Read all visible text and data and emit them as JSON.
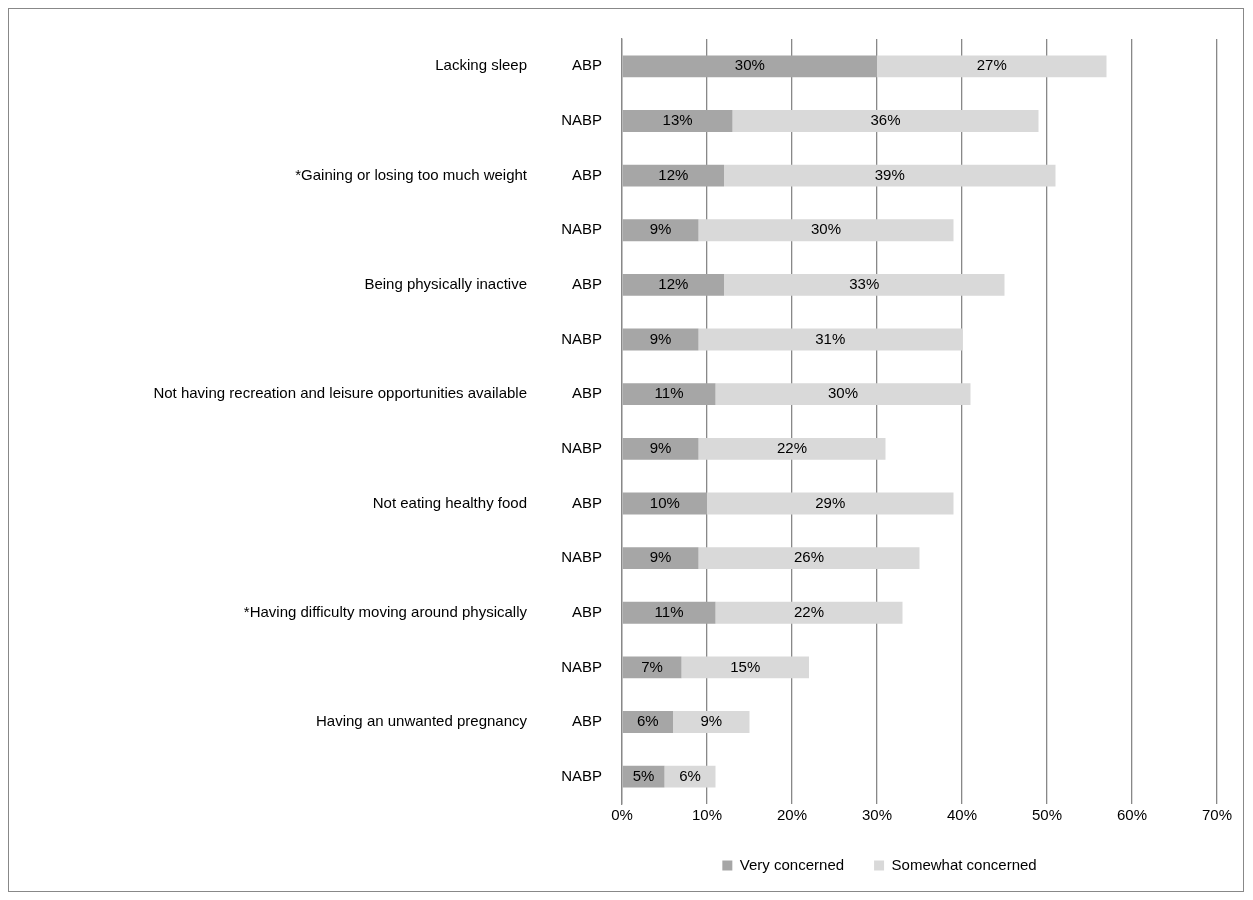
{
  "chart_data": {
    "type": "bar",
    "orientation": "horizontal",
    "stacked": true,
    "categories": [
      "ABP",
      "NABP",
      "ABP",
      "NABP",
      "ABP",
      "NABP",
      "ABP",
      "NABP",
      "ABP",
      "NABP",
      "ABP",
      "NABP",
      "ABP",
      "NABP"
    ],
    "annotations": [
      "Lacking sleep",
      "*Gaining or losing too much weight",
      "Being physically inactive",
      "Not having recreation and leisure opportunities available",
      "Not eating healthy food",
      "*Having difficulty moving around physically",
      "Having an unwanted pregnancy"
    ],
    "series": [
      {
        "name": "Very concerned",
        "color": "#a6a6a6",
        "values": [
          30,
          13,
          12,
          9,
          12,
          9,
          11,
          9,
          10,
          9,
          11,
          7,
          6,
          5
        ],
        "value_labels": [
          "30%",
          "13%",
          "12%",
          "9%",
          "12%",
          "9%",
          "11%",
          "9%",
          "10%",
          "9%",
          "11%",
          "7%",
          "6%",
          "5%"
        ]
      },
      {
        "name": "Somewhat concerned",
        "color": "#d9d9d9",
        "values": [
          27,
          36,
          39,
          30,
          33,
          31,
          30,
          22,
          29,
          26,
          22,
          15,
          9,
          6
        ],
        "value_labels": [
          "27%",
          "36%",
          "39%",
          "30%",
          "33%",
          "31%",
          "30%",
          "22%",
          "29%",
          "26%",
          "22%",
          "15%",
          "9%",
          "6%"
        ]
      }
    ],
    "xlim": [
      0,
      70
    ],
    "xticks": [
      {
        "value": 0,
        "label": "0%"
      },
      {
        "value": 10,
        "label": "10%"
      },
      {
        "value": 20,
        "label": "20%"
      },
      {
        "value": 30,
        "label": "30%"
      },
      {
        "value": 40,
        "label": "40%"
      },
      {
        "value": 50,
        "label": "50%"
      },
      {
        "value": 60,
        "label": "60%"
      },
      {
        "value": 70,
        "label": "70%"
      }
    ],
    "grid": "x",
    "legend": "bottom"
  }
}
